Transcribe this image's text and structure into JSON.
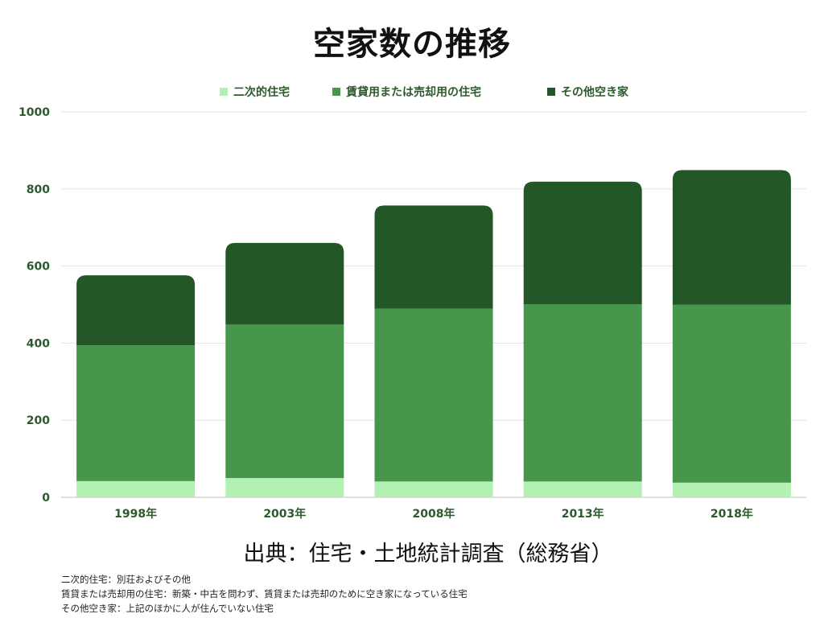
{
  "chart_data": {
    "type": "bar",
    "stacked": true,
    "title": "空家数の推移",
    "categories": [
      "1998年",
      "2003年",
      "2008年",
      "2013年",
      "2018年"
    ],
    "series": [
      {
        "name": "二次的住宅",
        "values": [
          42,
          50,
          41,
          41,
          38
        ],
        "color": "#b3f0b3"
      },
      {
        "name": "賃貸用または売却用の住宅",
        "values": [
          352,
          398,
          448,
          460,
          462
        ],
        "color": "#46964b"
      },
      {
        "name": "その他空き家",
        "values": [
          182,
          212,
          268,
          318,
          349
        ],
        "color": "#245728"
      }
    ],
    "yticks": [
      "0",
      "200",
      "400",
      "600",
      "800",
      "1000"
    ],
    "ylim": [
      0,
      1000
    ],
    "grid": true,
    "legend": "top-center"
  },
  "source": "出典：住宅・土地統計調査（総務省）",
  "notes": [
    "二次的住宅：別荘およびその他",
    "賃貸または売却用の住宅：新築・中古を問わず、賃貸または売却のために空き家になっている住宅",
    "その他空き家：上記のほかに人が住んでいない住宅"
  ]
}
